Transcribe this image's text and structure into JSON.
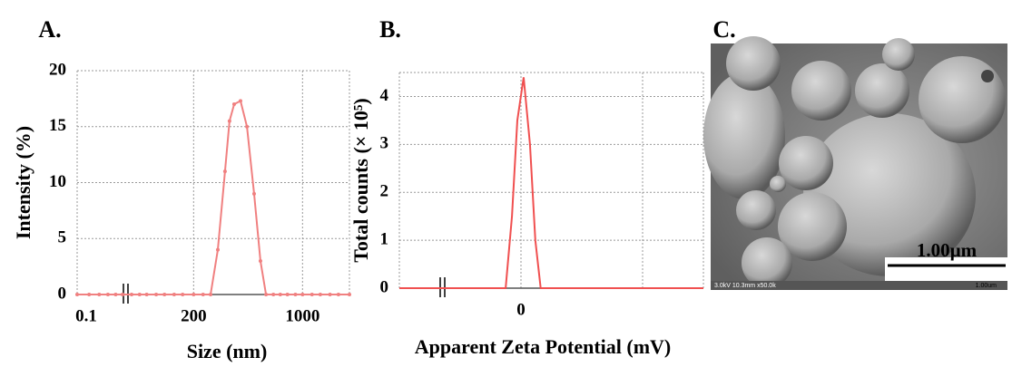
{
  "chart_data": [
    {
      "type": "line",
      "panel": "A.",
      "xlabel": "Size (nm)",
      "ylabel": "Intensity (%)",
      "color": "#f08080",
      "markers": true,
      "xscale": "log",
      "xbreak": [
        0.2,
        80
      ],
      "xlim": [
        0.1,
        2000
      ],
      "xticks": [
        0.1,
        200,
        1000
      ],
      "ylim": [
        0,
        20
      ],
      "yticks": [
        0,
        5,
        10,
        15,
        20
      ],
      "grid": true,
      "x": [
        0.1,
        0.12,
        0.14,
        0.16,
        0.18,
        0.2,
        80,
        90,
        100,
        115,
        130,
        150,
        170,
        200,
        230,
        257,
        286,
        318,
        340,
        364,
        400,
        440,
        489,
        537,
        583,
        650,
        720,
        800,
        900,
        1000,
        1150,
        1300,
        1500,
        1700,
        2000
      ],
      "values": [
        0,
        0,
        0,
        0,
        0,
        0,
        0,
        0,
        0,
        0,
        0,
        0,
        0,
        0,
        0,
        0,
        4,
        11,
        15.5,
        17,
        17.3,
        15,
        9,
        3,
        0,
        0,
        0,
        0,
        0,
        0,
        0,
        0,
        0,
        0,
        0
      ]
    },
    {
      "type": "line",
      "panel": "B.",
      "xlabel": "Apparent Zeta Potential (mV)",
      "ylabel": "Total counts (× 10⁵)",
      "color": "#f05050",
      "markers": false,
      "xlim": [
        -50,
        75
      ],
      "xticks": [
        0
      ],
      "xgrid": [
        0,
        50
      ],
      "ylim": [
        0,
        4.5
      ],
      "yticks": [
        0,
        1,
        2,
        3,
        4
      ],
      "grid": true,
      "x": [
        -50,
        -6.3,
        -3.7,
        -1.5,
        1.1,
        3.7,
        5.9,
        8.1,
        75
      ],
      "values": [
        0,
        0,
        1.5,
        3.5,
        4.4,
        3,
        1,
        0,
        0
      ]
    }
  ],
  "image_panel": {
    "panel": "C.",
    "scale_bar": "1.00µm",
    "info": "3.0kV 10.3mm x50.0k",
    "info_scale": "1.00um"
  }
}
